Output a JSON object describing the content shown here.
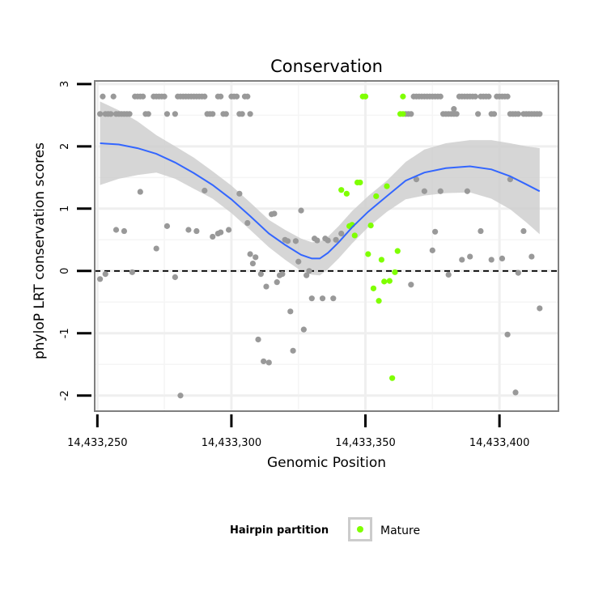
{
  "chart_data": {
    "type": "scatter",
    "title": "Conservation",
    "xlabel": "Genomic Position",
    "ylabel": "phyloP LRT conservation scores",
    "xlim": [
      14433249,
      14433422
    ],
    "ylim": [
      -2.25,
      3.05
    ],
    "x_ticks": [
      {
        "value": 14433250,
        "label": "14,433,250"
      },
      {
        "value": 14433300,
        "label": "14,433,300"
      },
      {
        "value": 14433350,
        "label": "14,433,350"
      },
      {
        "value": 14433400,
        "label": "14,433,400"
      }
    ],
    "y_ticks": [
      {
        "value": -2,
        "label": "-2"
      },
      {
        "value": -1,
        "label": "-1"
      },
      {
        "value": 0,
        "label": "0"
      },
      {
        "value": 1,
        "label": "1"
      },
      {
        "value": 2,
        "label": "2"
      },
      {
        "value": 3,
        "label": "3"
      }
    ],
    "reference_line": {
      "y": 0,
      "style": "dashed"
    },
    "legend": {
      "title": "Hairpin partition",
      "entries": [
        {
          "label": "Mature",
          "color": "#7fff00"
        }
      ]
    },
    "colors": {
      "other": "#999999",
      "mature": "#7fff00",
      "smooth": "#3366ff",
      "ribbon": "#cccccc"
    },
    "series": [
      {
        "name": "Other",
        "points": [
          [
            14433251,
            2.52
          ],
          [
            14433252,
            2.8
          ],
          [
            14433253,
            2.52
          ],
          [
            14433254,
            2.52
          ],
          [
            14433255,
            2.52
          ],
          [
            14433256,
            2.8
          ],
          [
            14433257,
            2.52
          ],
          [
            14433258,
            2.52
          ],
          [
            14433259,
            2.52
          ],
          [
            14433260,
            2.52
          ],
          [
            14433261,
            2.52
          ],
          [
            14433262,
            2.52
          ],
          [
            14433264,
            2.8
          ],
          [
            14433265,
            2.8
          ],
          [
            14433266,
            2.8
          ],
          [
            14433267,
            2.8
          ],
          [
            14433268,
            2.52
          ],
          [
            14433269,
            2.52
          ],
          [
            14433271,
            2.8
          ],
          [
            14433272,
            2.8
          ],
          [
            14433273,
            2.8
          ],
          [
            14433274,
            2.8
          ],
          [
            14433275,
            2.8
          ],
          [
            14433276,
            2.52
          ],
          [
            14433279,
            2.52
          ],
          [
            14433280,
            2.8
          ],
          [
            14433281,
            2.8
          ],
          [
            14433282,
            2.8
          ],
          [
            14433283,
            2.8
          ],
          [
            14433284,
            2.8
          ],
          [
            14433285,
            2.8
          ],
          [
            14433286,
            2.8
          ],
          [
            14433287,
            2.8
          ],
          [
            14433288,
            2.8
          ],
          [
            14433289,
            2.8
          ],
          [
            14433290,
            2.8
          ],
          [
            14433291,
            2.52
          ],
          [
            14433292,
            2.52
          ],
          [
            14433293,
            2.52
          ],
          [
            14433295,
            2.8
          ],
          [
            14433296,
            2.8
          ],
          [
            14433297,
            2.52
          ],
          [
            14433298,
            2.52
          ],
          [
            14433300,
            2.8
          ],
          [
            14433301,
            2.8
          ],
          [
            14433302,
            2.8
          ],
          [
            14433303,
            2.52
          ],
          [
            14433304,
            2.52
          ],
          [
            14433305,
            2.8
          ],
          [
            14433306,
            2.8
          ],
          [
            14433307,
            2.52
          ],
          [
            14433365,
            2.52
          ],
          [
            14433366,
            2.52
          ],
          [
            14433367,
            2.52
          ],
          [
            14433368,
            2.8
          ],
          [
            14433369,
            2.8
          ],
          [
            14433370,
            2.8
          ],
          [
            14433371,
            2.8
          ],
          [
            14433372,
            2.8
          ],
          [
            14433373,
            2.8
          ],
          [
            14433374,
            2.8
          ],
          [
            14433375,
            2.8
          ],
          [
            14433376,
            2.8
          ],
          [
            14433377,
            2.8
          ],
          [
            14433378,
            2.8
          ],
          [
            14433379,
            2.52
          ],
          [
            14433380,
            2.52
          ],
          [
            14433381,
            2.52
          ],
          [
            14433382,
            2.52
          ],
          [
            14433383,
            2.52
          ],
          [
            14433384,
            2.52
          ],
          [
            14433385,
            2.8
          ],
          [
            14433386,
            2.8
          ],
          [
            14433387,
            2.8
          ],
          [
            14433388,
            2.8
          ],
          [
            14433389,
            2.8
          ],
          [
            14433390,
            2.8
          ],
          [
            14433391,
            2.8
          ],
          [
            14433392,
            2.52
          ],
          [
            14433393,
            2.8
          ],
          [
            14433394,
            2.8
          ],
          [
            14433395,
            2.8
          ],
          [
            14433396,
            2.8
          ],
          [
            14433397,
            2.52
          ],
          [
            14433398,
            2.52
          ],
          [
            14433399,
            2.8
          ],
          [
            14433400,
            2.8
          ],
          [
            14433401,
            2.8
          ],
          [
            14433402,
            2.8
          ],
          [
            14433403,
            2.8
          ],
          [
            14433404,
            2.52
          ],
          [
            14433405,
            2.52
          ],
          [
            14433406,
            2.52
          ],
          [
            14433407,
            2.52
          ],
          [
            14433409,
            2.52
          ],
          [
            14433410,
            2.52
          ],
          [
            14433411,
            2.52
          ],
          [
            14433412,
            2.52
          ],
          [
            14433413,
            2.52
          ],
          [
            14433414,
            2.52
          ],
          [
            14433415,
            2.52
          ],
          [
            14433251,
            -0.13
          ],
          [
            14433253,
            -0.05
          ],
          [
            14433257,
            0.66
          ],
          [
            14433260,
            0.64
          ],
          [
            14433263,
            -0.02
          ],
          [
            14433266,
            1.27
          ],
          [
            14433272,
            0.36
          ],
          [
            14433276,
            0.72
          ],
          [
            14433279,
            -0.1
          ],
          [
            14433281,
            -2.0
          ],
          [
            14433284,
            0.66
          ],
          [
            14433287,
            0.64
          ],
          [
            14433290,
            1.29
          ],
          [
            14433293,
            0.55
          ],
          [
            14433295,
            0.6
          ],
          [
            14433296,
            0.62
          ],
          [
            14433299,
            0.66
          ],
          [
            14433303,
            1.24
          ],
          [
            14433306,
            0.77
          ],
          [
            14433307,
            0.27
          ],
          [
            14433308,
            0.12
          ],
          [
            14433309,
            0.22
          ],
          [
            14433310,
            -1.1
          ],
          [
            14433311,
            -0.05
          ],
          [
            14433312,
            -1.45
          ],
          [
            14433313,
            -0.25
          ],
          [
            14433314,
            -1.47
          ],
          [
            14433315,
            0.91
          ],
          [
            14433316,
            0.92
          ],
          [
            14433317,
            -0.18
          ],
          [
            14433318,
            -0.07
          ],
          [
            14433319,
            -0.05
          ],
          [
            14433320,
            0.5
          ],
          [
            14433321,
            0.48
          ],
          [
            14433322,
            -0.65
          ],
          [
            14433323,
            -1.28
          ],
          [
            14433324,
            0.48
          ],
          [
            14433325,
            0.15
          ],
          [
            14433326,
            0.97
          ],
          [
            14433327,
            -0.94
          ],
          [
            14433328,
            -0.07
          ],
          [
            14433329,
            0.0
          ],
          [
            14433330,
            -0.44
          ],
          [
            14433331,
            0.52
          ],
          [
            14433332,
            0.49
          ],
          [
            14433334,
            -0.44
          ],
          [
            14433335,
            0.52
          ],
          [
            14433336,
            0.49
          ],
          [
            14433338,
            -0.44
          ],
          [
            14433339,
            0.5
          ],
          [
            14433341,
            0.6
          ],
          [
            14433367,
            -0.22
          ],
          [
            14433369,
            1.47
          ],
          [
            14433372,
            1.28
          ],
          [
            14433375,
            0.33
          ],
          [
            14433376,
            0.63
          ],
          [
            14433378,
            1.28
          ],
          [
            14433381,
            -0.06
          ],
          [
            14433383,
            2.6
          ],
          [
            14433386,
            0.18
          ],
          [
            14433388,
            1.28
          ],
          [
            14433389,
            0.23
          ],
          [
            14433393,
            0.64
          ],
          [
            14433397,
            0.18
          ],
          [
            14433401,
            0.2
          ],
          [
            14433403,
            -1.02
          ],
          [
            14433404,
            1.47
          ],
          [
            14433406,
            -1.95
          ],
          [
            14433407,
            -0.03
          ],
          [
            14433409,
            0.64
          ],
          [
            14433412,
            0.23
          ],
          [
            14433415,
            -0.6
          ]
        ]
      },
      {
        "name": "Mature",
        "points": [
          [
            14433341,
            1.3
          ],
          [
            14433343,
            1.24
          ],
          [
            14433344,
            0.72
          ],
          [
            14433345,
            0.74
          ],
          [
            14433346,
            0.57
          ],
          [
            14433347,
            1.42
          ],
          [
            14433348,
            1.42
          ],
          [
            14433349,
            2.8
          ],
          [
            14433350,
            2.8
          ],
          [
            14433351,
            0.27
          ],
          [
            14433352,
            0.73
          ],
          [
            14433353,
            -0.28
          ],
          [
            14433354,
            1.2
          ],
          [
            14433355,
            -0.48
          ],
          [
            14433356,
            0.18
          ],
          [
            14433357,
            -0.17
          ],
          [
            14433358,
            1.36
          ],
          [
            14433359,
            -0.16
          ],
          [
            14433360,
            -1.72
          ],
          [
            14433361,
            -0.02
          ],
          [
            14433362,
            0.32
          ],
          [
            14433363,
            2.52
          ],
          [
            14433364,
            2.52
          ],
          [
            14433364,
            2.8
          ]
        ]
      }
    ],
    "smooth_curve": [
      [
        14433251,
        2.05
      ],
      [
        14433258,
        2.03
      ],
      [
        14433265,
        1.97
      ],
      [
        14433272,
        1.88
      ],
      [
        14433279,
        1.74
      ],
      [
        14433286,
        1.57
      ],
      [
        14433293,
        1.38
      ],
      [
        14433300,
        1.15
      ],
      [
        14433307,
        0.88
      ],
      [
        14433314,
        0.6
      ],
      [
        14433320,
        0.42
      ],
      [
        14433326,
        0.26
      ],
      [
        14433330,
        0.2
      ],
      [
        14433333,
        0.2
      ],
      [
        14433336,
        0.29
      ],
      [
        14433340,
        0.46
      ],
      [
        14433345,
        0.7
      ],
      [
        14433351,
        0.95
      ],
      [
        14433358,
        1.2
      ],
      [
        14433365,
        1.45
      ],
      [
        14433372,
        1.58
      ],
      [
        14433380,
        1.65
      ],
      [
        14433389,
        1.68
      ],
      [
        14433397,
        1.63
      ],
      [
        14433404,
        1.52
      ],
      [
        14433410,
        1.39
      ],
      [
        14433415,
        1.28
      ]
    ],
    "ribbon_upper": [
      [
        14433251,
        2.72
      ],
      [
        14433258,
        2.58
      ],
      [
        14433265,
        2.4
      ],
      [
        14433272,
        2.18
      ],
      [
        14433279,
        2.0
      ],
      [
        14433286,
        1.82
      ],
      [
        14433293,
        1.6
      ],
      [
        14433300,
        1.37
      ],
      [
        14433307,
        1.1
      ],
      [
        14433314,
        0.82
      ],
      [
        14433320,
        0.66
      ],
      [
        14433326,
        0.52
      ],
      [
        14433330,
        0.46
      ],
      [
        14433333,
        0.47
      ],
      [
        14433336,
        0.55
      ],
      [
        14433340,
        0.72
      ],
      [
        14433345,
        0.96
      ],
      [
        14433351,
        1.2
      ],
      [
        14433358,
        1.45
      ],
      [
        14433365,
        1.75
      ],
      [
        14433372,
        1.95
      ],
      [
        14433380,
        2.05
      ],
      [
        14433389,
        2.1
      ],
      [
        14433397,
        2.1
      ],
      [
        14433404,
        2.05
      ],
      [
        14433410,
        2.0
      ],
      [
        14433415,
        1.97
      ]
    ],
    "ribbon_lower": [
      [
        14433251,
        1.38
      ],
      [
        14433258,
        1.48
      ],
      [
        14433265,
        1.54
      ],
      [
        14433272,
        1.58
      ],
      [
        14433279,
        1.48
      ],
      [
        14433286,
        1.32
      ],
      [
        14433293,
        1.16
      ],
      [
        14433300,
        0.93
      ],
      [
        14433307,
        0.66
      ],
      [
        14433314,
        0.38
      ],
      [
        14433320,
        0.18
      ],
      [
        14433326,
        0.0
      ],
      [
        14433330,
        -0.06
      ],
      [
        14433333,
        -0.07
      ],
      [
        14433336,
        0.03
      ],
      [
        14433340,
        0.2
      ],
      [
        14433345,
        0.44
      ],
      [
        14433351,
        0.7
      ],
      [
        14433358,
        0.95
      ],
      [
        14433365,
        1.15
      ],
      [
        14433372,
        1.21
      ],
      [
        14433380,
        1.25
      ],
      [
        14433389,
        1.26
      ],
      [
        14433397,
        1.16
      ],
      [
        14433404,
        0.99
      ],
      [
        14433410,
        0.78
      ],
      [
        14433415,
        0.59
      ]
    ]
  }
}
